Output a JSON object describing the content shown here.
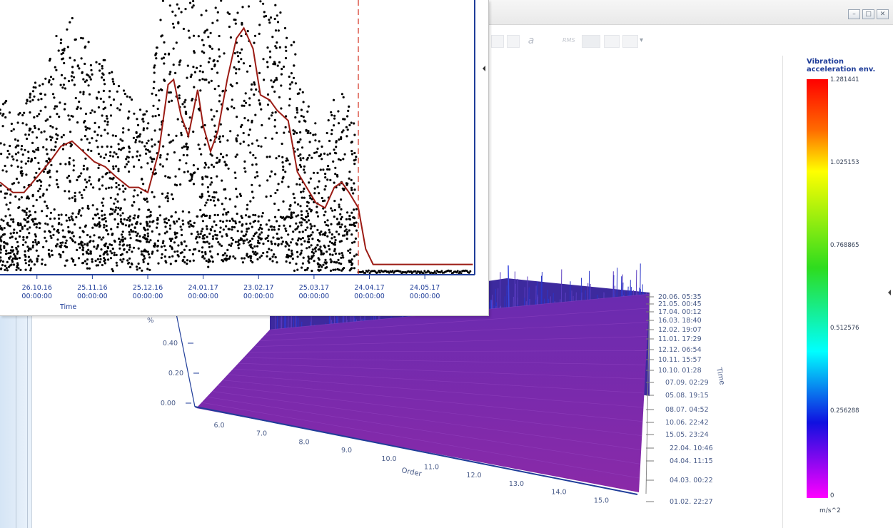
{
  "window_controls": {
    "minimize": "–",
    "maximize": "□",
    "close": "✕"
  },
  "toolbar": [
    {
      "name": "list-icon"
    },
    {
      "name": "table-icon"
    },
    {
      "name": "italic-a-icon",
      "glyph": "a"
    },
    {
      "name": "rms-icon",
      "glyph": "RMS"
    },
    {
      "name": "line-icon"
    },
    {
      "name": "grid-icon"
    },
    {
      "name": "crosshair-icon"
    },
    {
      "name": "dropdown-arrow-icon",
      "glyph": "▾"
    }
  ],
  "colors": {
    "accent": "#1f3d99",
    "trend": "#9b1b14",
    "cursor": "#d63a2a",
    "surface": "#7b1fa8"
  },
  "chart_data": [
    {
      "type": "scatter",
      "xlabel": "Time",
      "x_ticks": [
        {
          "date": "26.10.16",
          "time": "00:00:00"
        },
        {
          "date": "25.11.16",
          "time": "00:00:00"
        },
        {
          "date": "25.12.16",
          "time": "00:00:00"
        },
        {
          "date": "24.01.17",
          "time": "00:00:00"
        },
        {
          "date": "23.02.17",
          "time": "00:00:00"
        },
        {
          "date": "25.03.17",
          "time": "00:00:00"
        },
        {
          "date": "24.04.17",
          "time": "00:00:00"
        },
        {
          "date": "24.05.17",
          "time": "00:00:00"
        }
      ],
      "xlim": [
        "2016-10-06",
        "2017-06-20"
      ],
      "cursor_date": "2017-04-18",
      "series": [
        {
          "kind": "trend-line",
          "x": [
            "2016-10-06",
            "2016-10-13",
            "2016-10-19",
            "2016-10-26",
            "2016-11-02",
            "2016-11-08",
            "2016-11-14",
            "2016-11-20",
            "2016-11-26",
            "2016-12-02",
            "2016-12-08",
            "2016-12-15",
            "2016-12-20",
            "2016-12-25",
            "2016-12-31",
            "2017-01-05",
            "2017-01-08",
            "2017-01-12",
            "2017-01-16",
            "2017-01-21",
            "2017-01-24",
            "2017-01-28",
            "2017-02-01",
            "2017-02-06",
            "2017-02-11",
            "2017-02-15",
            "2017-02-20",
            "2017-02-24",
            "2017-03-01",
            "2017-03-05",
            "2017-03-11",
            "2017-03-16",
            "2017-03-21",
            "2017-03-26",
            "2017-03-31",
            "2017-04-05",
            "2017-04-09",
            "2017-04-13",
            "2017-04-18",
            "2017-04-22",
            "2017-04-26",
            "2017-05-05",
            "2017-05-20",
            "2017-06-04",
            "2017-06-19"
          ],
          "y": [
            0.08,
            0.06,
            0.06,
            0.09,
            0.12,
            0.15,
            0.16,
            0.14,
            0.12,
            0.11,
            0.09,
            0.07,
            0.07,
            0.06,
            0.14,
            0.27,
            0.28,
            0.21,
            0.17,
            0.26,
            0.19,
            0.14,
            0.18,
            0.28,
            0.36,
            0.38,
            0.34,
            0.25,
            0.24,
            0.22,
            0.2,
            0.1,
            0.07,
            0.04,
            0.03,
            0.07,
            0.08,
            0.06,
            0.03,
            -0.05,
            -0.08,
            -0.08,
            -0.08,
            -0.08,
            -0.08
          ]
        }
      ]
    },
    {
      "type": "area",
      "ylabel": "%",
      "xlabel": "Order",
      "zlabel": "Time",
      "y_ticks": [
        "0.00",
        "0.20",
        "0.40"
      ],
      "x_ticks": [
        "6.0",
        "7.0",
        "8.0",
        "9.0",
        "10.0",
        "11.0",
        "12.0",
        "13.0",
        "14.0",
        "15.0"
      ],
      "time_ticks": [
        "20.06. 05:35",
        "21.05. 00:45",
        "17.04. 00:12",
        "16.03. 18:40",
        "12.02. 19:07",
        "11.01. 17:29",
        "12.12. 06:54",
        "10.11. 15:57",
        "10.10. 01:28",
        "07.09. 02:29",
        "05.08. 19:15",
        "08.07. 04:52",
        "10.06. 22:42",
        "15.05. 23:24",
        "22.04. 10:46",
        "04.04. 11:15",
        "04.03. 00:22",
        "01.02. 22:27"
      ]
    }
  ],
  "legend": {
    "title": "Vibration acceleration env.",
    "max": "1.281441",
    "values": [
      "1.025153",
      "0.768865",
      "0.512576",
      "0.256288"
    ],
    "min": "0",
    "unit": "m/s^2"
  }
}
